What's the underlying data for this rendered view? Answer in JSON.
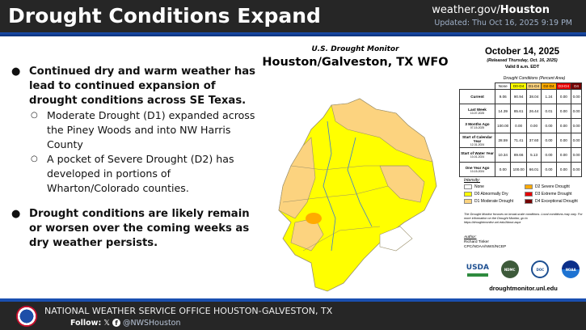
{
  "header": {
    "title": "Drought Conditions Expand",
    "site_prefix": "weather.gov/",
    "site_bold": "Houston",
    "updated": "Updated: Thu Oct 16, 2025 9:19 PM"
  },
  "bullets": [
    {
      "text": "Continued dry and warm weather has lead to continued expansion of drought conditions across SE Texas.",
      "sub": [
        "Moderate Drought (D1) expanded across the Piney Woods and into NW Harris County",
        "A pocket of Severe Drought (D2) has developed in portions of Wharton/Colorado counties."
      ]
    },
    {
      "text": "Drought conditions are likely remain or worsen over the coming weeks as dry weather persists.",
      "sub": []
    }
  ],
  "map": {
    "subtitle": "U.S. Drought Monitor",
    "title": "Houston/Galveston, TX WFO"
  },
  "panel": {
    "date": "October 14, 2025",
    "released": "(Released Thursday, Oct. 16, 2025)",
    "valid": "Valid 8 a.m. EDT",
    "caption": "Drought Conditions (Percent Area)",
    "columns": [
      "None",
      "D0-D4",
      "D1-D4",
      "D2-D4",
      "D3-D4",
      "D4"
    ],
    "column_colors": [
      "#ffffff",
      "#ffff00",
      "#fcd37f",
      "#ffaa00",
      "#e60000",
      "#730000"
    ],
    "rows": [
      {
        "label": "Current",
        "date": "",
        "values": [
          "9.06",
          "90.94",
          "38.04",
          "1.24",
          "0.00",
          "0.00"
        ]
      },
      {
        "label": "Last Week",
        "date": "10-07-2025",
        "values": [
          "14.39",
          "85.61",
          "26.44",
          "0.01",
          "0.00",
          "0.00"
        ]
      },
      {
        "label": "3 Months Ago",
        "date": "07-15-2025",
        "values": [
          "100.00",
          "0.00",
          "0.00",
          "0.00",
          "0.00",
          "0.00"
        ]
      },
      {
        "label": "Start of Calendar Year",
        "date": "12-31-2024",
        "values": [
          "28.59",
          "71.41",
          "37.60",
          "0.00",
          "0.00",
          "0.00"
        ]
      },
      {
        "label": "Start of Water Year",
        "date": "10-01-2024",
        "values": [
          "10.34",
          "89.66",
          "5.13",
          "0.00",
          "0.00",
          "0.00"
        ]
      },
      {
        "label": "One Year Ago",
        "date": "10-15-2024",
        "values": [
          "0.00",
          "100.00",
          "66.01",
          "0.00",
          "0.00",
          "0.00"
        ]
      }
    ]
  },
  "legend": {
    "title": "Intensity:",
    "items": [
      {
        "label": "None",
        "color": "#ffffff"
      },
      {
        "label": "D2 Severe Drought",
        "color": "#ffaa00"
      },
      {
        "label": "D0 Abnormally Dry",
        "color": "#ffff00"
      },
      {
        "label": "D3 Extreme Drought",
        "color": "#e60000"
      },
      {
        "label": "D1 Moderate Drought",
        "color": "#fcd37f"
      },
      {
        "label": "D4 Exceptional Drought",
        "color": "#730000"
      }
    ]
  },
  "note": "The Drought Monitor focuses on broad-scale conditions. Local conditions may vary. For more information on the Drought Monitor, go to https://droughtmonitor.unl.edu/About.aspx",
  "author": {
    "heading": "Author:",
    "name": "Richard Tinker",
    "org": "CPC/NOAA/NWS/NCEP"
  },
  "logos": [
    "USDA",
    "NDMC",
    "DOC",
    "NOAA"
  ],
  "dm_url": "droughtmonitor.unl.edu",
  "footer": {
    "office": "NATIONAL WEATHER SERVICE OFFICE HOUSTON-GALVESTON, TX",
    "follow": "Follow:",
    "x_icon": "𝕏",
    "handle": "@NWSHouston"
  }
}
